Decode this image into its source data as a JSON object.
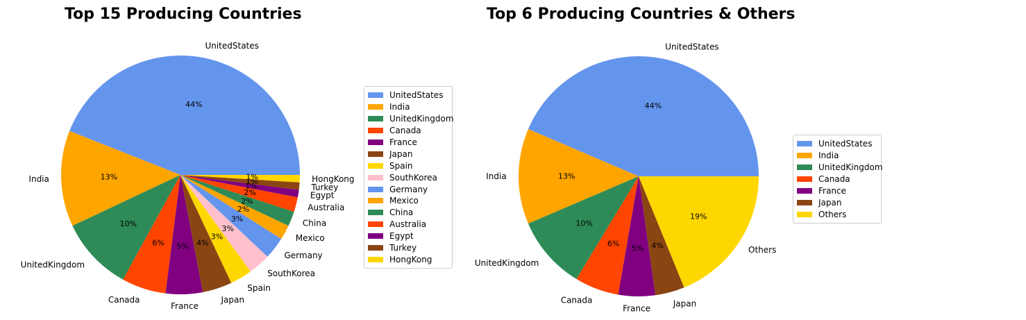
{
  "chart_data": [
    {
      "type": "pie",
      "title": "Top 15 Producing Countries",
      "categories": [
        "UnitedStates",
        "India",
        "UnitedKingdom",
        "Canada",
        "France",
        "Japan",
        "Spain",
        "SouthKorea",
        "Germany",
        "Mexico",
        "China",
        "Australia",
        "Egypt",
        "Turkey",
        "HongKong"
      ],
      "values": [
        44,
        13,
        10,
        6,
        5,
        4,
        3,
        3,
        3,
        2,
        2,
        2,
        1,
        1,
        1
      ],
      "value_labels": [
        "44%",
        "13%",
        "10%",
        "6%",
        "5%",
        "4%",
        "3%",
        "3%",
        "3%",
        "2%",
        "2%",
        "2%",
        "1%",
        "1%",
        "1%"
      ],
      "colors": [
        "#6495ED",
        "#FFA500",
        "#2E8B57",
        "#FF4500",
        "#800080",
        "#8B4513",
        "#FFD700",
        "#FFC0CB",
        "#6495ED",
        "#FFA500",
        "#2E8B57",
        "#FF4500",
        "#800080",
        "#8B4513",
        "#FFD700"
      ],
      "start_angle": 0,
      "direction": "counterclockwise",
      "legend_position": "right"
    },
    {
      "type": "pie",
      "title": "Top 6 Producing Countries & Others",
      "categories": [
        "UnitedStates",
        "India",
        "UnitedKingdom",
        "Canada",
        "France",
        "Japan",
        "Others"
      ],
      "values": [
        44,
        13,
        10,
        6,
        5,
        4,
        19
      ],
      "value_labels": [
        "44%",
        "13%",
        "10%",
        "6%",
        "5%",
        "4%",
        "19%"
      ],
      "colors": [
        "#6495ED",
        "#FFA500",
        "#2E8B57",
        "#FF4500",
        "#800080",
        "#8B4513",
        "#FFD700"
      ],
      "start_angle": 0,
      "direction": "counterclockwise",
      "legend_position": "right"
    }
  ]
}
